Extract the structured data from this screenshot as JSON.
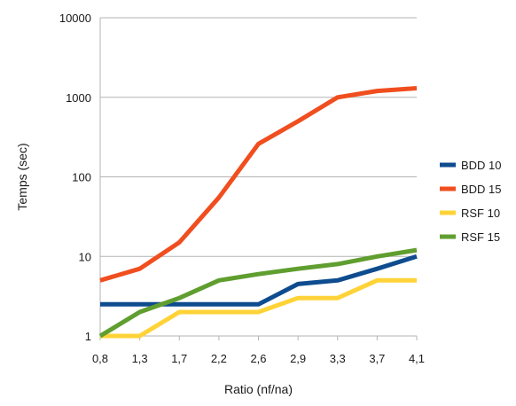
{
  "chart_data": {
    "type": "line",
    "x": [
      "0,8",
      "1,3",
      "1,7",
      "2,2",
      "2,6",
      "2,9",
      "3,3",
      "3,7",
      "4,1"
    ],
    "xlabel": "Ratio (nf/na)",
    "ylabel": "Temps (sec)",
    "yscale": "log",
    "ylim": [
      1,
      10000
    ],
    "yticks": [
      1,
      10,
      100,
      1000,
      10000
    ],
    "ytick_labels": [
      "1",
      "10",
      "100",
      "1000",
      "10000"
    ],
    "grid": {
      "x": false,
      "y": true
    },
    "legend": "right",
    "series": [
      {
        "name": "BDD 10",
        "color": "#0e4c8f",
        "values": [
          2.5,
          2.5,
          2.5,
          2.5,
          2.5,
          4.5,
          5,
          7,
          10
        ]
      },
      {
        "name": "BDD 15",
        "color": "#f04e1f",
        "values": [
          5,
          7,
          15,
          55,
          260,
          500,
          1000,
          1200,
          1300
        ]
      },
      {
        "name": "RSF 10",
        "color": "#ffd338",
        "values": [
          1,
          1,
          2,
          2,
          2,
          3,
          3,
          5,
          5
        ]
      },
      {
        "name": "RSF 15",
        "color": "#5f9e2f",
        "values": [
          1,
          2,
          3,
          5,
          6,
          7,
          8,
          10,
          12
        ]
      }
    ]
  }
}
